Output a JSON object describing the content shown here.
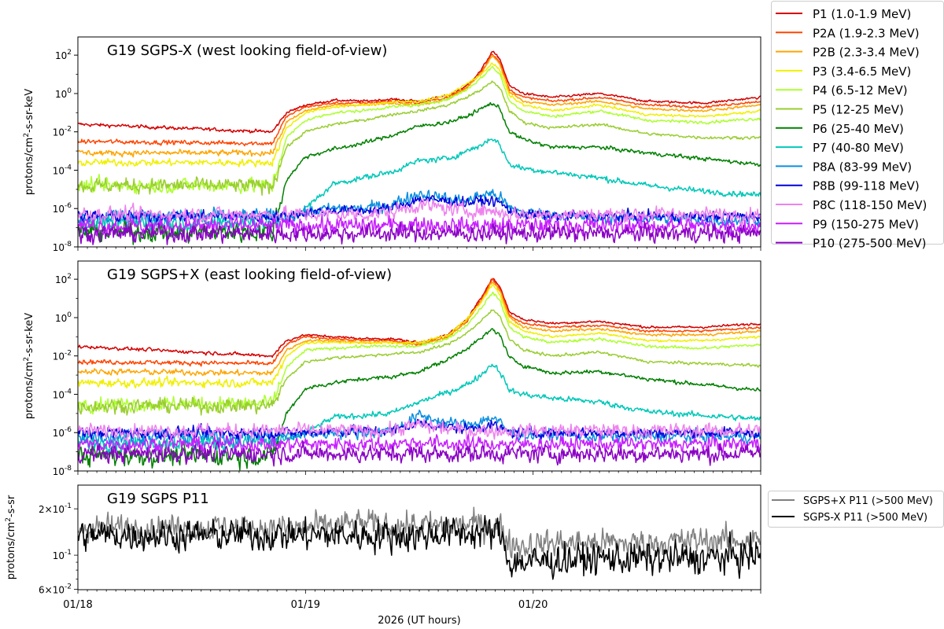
{
  "chart_data": {
    "type": "line",
    "xlabel": "2026 (UT hours)",
    "x_units": "hours since 01/18 00:00 UT",
    "xlim": [
      0,
      72
    ],
    "x_ticks": [
      {
        "h": 0,
        "label": "01/18"
      },
      {
        "h": 24,
        "label": "01/19"
      },
      {
        "h": 48,
        "label": "01/20"
      }
    ],
    "keypoint_hours": [
      0,
      20.5,
      22,
      24,
      27,
      30,
      33,
      36,
      39,
      41,
      42.5,
      43.7,
      44.5,
      45.5,
      47,
      50,
      55,
      60,
      66,
      72
    ],
    "panels": [
      {
        "title": "G19 SGPS-X (west looking field-of-view)",
        "ylabel": "protons/cm2-s-sr-keV",
        "yscale": "log",
        "ylim_log10": [
          -8,
          2.95
        ],
        "y_ticks": [
          {
            "exp": 2,
            "label": "10^2"
          },
          {
            "exp": 0,
            "label": "10^0"
          },
          {
            "exp": -2,
            "label": "10^-2"
          },
          {
            "exp": -4,
            "label": "10^-4"
          },
          {
            "exp": -6,
            "label": "10^-6"
          },
          {
            "exp": -8,
            "label": "10^-8"
          }
        ],
        "series": [
          {
            "name": "P1 (1.0-1.9 MeV)",
            "color": "#d40000",
            "noise_pre": 0.06,
            "noise_post": 0.04,
            "log10_values": [
              -1.6,
              -2.0,
              -1.0,
              -0.6,
              -0.35,
              -0.4,
              -0.3,
              -0.4,
              -0.1,
              0.4,
              1.2,
              2.2,
              1.8,
              0.4,
              0.0,
              -0.2,
              0.0,
              -0.4,
              -0.5,
              -0.2
            ]
          },
          {
            "name": "P2A (1.9-2.3 MeV)",
            "color": "#ff4500",
            "noise_pre": 0.08,
            "noise_post": 0.04,
            "log10_values": [
              -2.5,
              -2.6,
              -1.2,
              -0.7,
              -0.5,
              -0.5,
              -0.4,
              -0.5,
              -0.2,
              0.3,
              1.1,
              2.1,
              1.6,
              0.2,
              -0.2,
              -0.4,
              -0.2,
              -0.6,
              -0.7,
              -0.4
            ]
          },
          {
            "name": "P2B (2.3-3.4 MeV)",
            "color": "#ffa500",
            "noise_pre": 0.1,
            "noise_post": 0.04,
            "log10_values": [
              -3.1,
              -3.1,
              -1.5,
              -0.9,
              -0.6,
              -0.6,
              -0.5,
              -0.6,
              -0.3,
              0.3,
              1.0,
              2.0,
              1.5,
              0.1,
              -0.4,
              -0.6,
              -0.4,
              -0.8,
              -0.9,
              -0.6
            ]
          },
          {
            "name": "P3 (3.4-6.5 MeV)",
            "color": "#f0f000",
            "noise_pre": 0.12,
            "noise_post": 0.04,
            "log10_values": [
              -3.6,
              -3.6,
              -1.8,
              -1.0,
              -0.7,
              -0.6,
              -0.45,
              -0.4,
              -0.1,
              0.5,
              1.0,
              1.6,
              1.2,
              -0.1,
              -0.6,
              -0.9,
              -0.6,
              -1.1,
              -1.2,
              -0.9
            ]
          },
          {
            "name": "P4 (6.5-12 MeV)",
            "color": "#adff2f",
            "noise_pre": 0.25,
            "noise_post": 0.05,
            "log10_values": [
              -4.8,
              -4.8,
              -2.3,
              -1.4,
              -1.0,
              -0.9,
              -0.7,
              -0.6,
              -0.3,
              0.2,
              0.8,
              1.4,
              1.0,
              -0.4,
              -0.9,
              -1.2,
              -0.9,
              -1.4,
              -1.5,
              -1.3
            ]
          },
          {
            "name": "P5 (12-25 MeV)",
            "color": "#9acd32",
            "noise_pre": 0.25,
            "noise_post": 0.05,
            "log10_values": [
              -4.8,
              -4.8,
              -2.8,
              -2.0,
              -1.6,
              -1.4,
              -1.1,
              -0.9,
              -0.6,
              -0.2,
              0.2,
              0.6,
              0.3,
              -0.9,
              -1.5,
              -1.8,
              -1.6,
              -2.1,
              -2.3,
              -2.3
            ]
          },
          {
            "name": "P6 (25-40 MeV)",
            "color": "#008000",
            "noise_pre": 0.35,
            "noise_post": 0.07,
            "log10_values": [
              -7.2,
              -7.2,
              -4.5,
              -3.3,
              -2.9,
              -2.6,
              -2.2,
              -1.7,
              -1.5,
              -1.2,
              -0.8,
              -0.5,
              -0.8,
              -2.0,
              -2.4,
              -2.8,
              -2.8,
              -3.1,
              -3.4,
              -3.7
            ]
          },
          {
            "name": "P7 (40-80 MeV)",
            "color": "#00c8b8",
            "noise_pre": 0.3,
            "noise_post": 0.1,
            "log10_values": [
              -6.7,
              -6.7,
              -6.6,
              -6.0,
              -4.7,
              -4.4,
              -4.1,
              -3.5,
              -3.4,
              -3.0,
              -2.7,
              -2.3,
              -2.7,
              -3.7,
              -3.9,
              -4.1,
              -4.4,
              -4.8,
              -5.1,
              -5.3
            ]
          },
          {
            "name": "P8A (83-99 MeV)",
            "color": "#0a8fe0",
            "noise_pre": 0.25,
            "noise_post": 0.2,
            "log10_values": [
              -6.4,
              -6.4,
              -6.4,
              -6.2,
              -6.0,
              -6.0,
              -5.8,
              -5.2,
              -5.5,
              -5.6,
              -5.3,
              -5.2,
              -5.4,
              -6.0,
              -6.2,
              -6.3,
              -6.5,
              -6.5,
              -6.6,
              -6.6
            ]
          },
          {
            "name": "P8B (99-118 MeV)",
            "color": "#0000dd",
            "noise_pre": 0.2,
            "noise_post": 0.18,
            "log10_values": [
              -6.4,
              -6.4,
              -6.4,
              -6.2,
              -6.1,
              -6.1,
              -6.0,
              -5.5,
              -5.6,
              -5.7,
              -5.6,
              -5.6,
              -5.7,
              -6.1,
              -6.3,
              -6.4,
              -6.4,
              -6.4,
              -6.4,
              -6.4
            ]
          },
          {
            "name": "P8C (118-150 MeV)",
            "color": "#ee82ee",
            "noise_pre": 0.25,
            "noise_post": 0.25,
            "log10_values": [
              -6.3,
              -6.3,
              -6.3,
              -6.3,
              -6.3,
              -6.3,
              -6.2,
              -5.8,
              -6.0,
              -6.1,
              -6.1,
              -6.1,
              -6.2,
              -6.3,
              -6.3,
              -6.3,
              -6.3,
              -6.3,
              -6.3,
              -6.3
            ]
          },
          {
            "name": "P9 (150-275 MeV)",
            "color": "#c71fff",
            "noise_pre": 0.3,
            "noise_post": 0.3,
            "log10_values": [
              -6.9,
              -6.9,
              -6.9,
              -6.9,
              -6.9,
              -6.9,
              -6.9,
              -6.8,
              -6.9,
              -6.9,
              -6.9,
              -6.9,
              -6.9,
              -6.9,
              -6.9,
              -6.9,
              -6.9,
              -6.9,
              -6.9,
              -6.9
            ]
          },
          {
            "name": "P10 (275-500 MeV)",
            "color": "#8a00c4",
            "noise_pre": 0.3,
            "noise_post": 0.3,
            "log10_values": [
              -7.3,
              -7.3,
              -7.3,
              -7.3,
              -7.3,
              -7.3,
              -7.3,
              -7.3,
              -7.3,
              -7.3,
              -7.3,
              -7.3,
              -7.3,
              -7.3,
              -7.3,
              -7.3,
              -7.3,
              -7.3,
              -7.3,
              -7.3
            ]
          }
        ]
      },
      {
        "title": "G19 SGPS+X (east looking field-of-view)",
        "ylabel": "protons/cm2-s-sr-keV",
        "yscale": "log",
        "ylim_log10": [
          -8,
          2.95
        ],
        "y_ticks": [
          {
            "exp": 2,
            "label": "10^2"
          },
          {
            "exp": 0,
            "label": "10^0"
          },
          {
            "exp": -2,
            "label": "10^-2"
          },
          {
            "exp": -4,
            "label": "10^-4"
          },
          {
            "exp": -6,
            "label": "10^-6"
          },
          {
            "exp": -8,
            "label": "10^-8"
          }
        ],
        "series": [
          {
            "name": "P1 (1.0-1.9 MeV)",
            "color": "#d40000",
            "noise_pre": 0.06,
            "noise_post": 0.04,
            "log10_values": [
              -1.5,
              -2.0,
              -1.2,
              -0.9,
              -1.0,
              -1.1,
              -1.1,
              -1.3,
              -0.9,
              -0.1,
              1.0,
              2.1,
              1.6,
              0.3,
              -0.1,
              -0.3,
              -0.2,
              -0.5,
              -0.5,
              -0.3
            ]
          },
          {
            "name": "P2A (1.9-2.3 MeV)",
            "color": "#ff4500",
            "noise_pre": 0.08,
            "noise_post": 0.04,
            "log10_values": [
              -2.3,
              -2.4,
              -1.4,
              -1.0,
              -1.1,
              -1.2,
              -1.2,
              -1.4,
              -1.0,
              -0.2,
              0.9,
              2.0,
              1.5,
              0.1,
              -0.3,
              -0.5,
              -0.4,
              -0.7,
              -0.7,
              -0.5
            ]
          },
          {
            "name": "P2B (2.3-3.4 MeV)",
            "color": "#ffa500",
            "noise_pre": 0.1,
            "noise_post": 0.04,
            "log10_values": [
              -2.8,
              -2.9,
              -1.7,
              -1.2,
              -1.2,
              -1.3,
              -1.3,
              -1.4,
              -1.0,
              -0.2,
              0.8,
              1.9,
              1.4,
              0.0,
              -0.5,
              -0.7,
              -0.6,
              -0.9,
              -0.9,
              -0.7
            ]
          },
          {
            "name": "P3 (3.4-6.5 MeV)",
            "color": "#f0f000",
            "noise_pre": 0.15,
            "noise_post": 0.04,
            "log10_values": [
              -3.4,
              -3.4,
              -2.0,
              -1.3,
              -1.3,
              -1.3,
              -1.3,
              -1.3,
              -0.9,
              -0.1,
              0.8,
              1.7,
              1.2,
              -0.2,
              -0.7,
              -1.0,
              -0.8,
              -1.2,
              -1.2,
              -1.0
            ]
          },
          {
            "name": "P4 (6.5-12 MeV)",
            "color": "#adff2f",
            "noise_pre": 0.25,
            "noise_post": 0.05,
            "log10_values": [
              -4.5,
              -4.5,
              -2.6,
              -1.7,
              -1.6,
              -1.5,
              -1.5,
              -1.5,
              -1.1,
              -0.4,
              0.5,
              1.3,
              0.9,
              -0.5,
              -1.0,
              -1.3,
              -1.1,
              -1.5,
              -1.6,
              -1.4
            ]
          },
          {
            "name": "P5 (12-25 MeV)",
            "color": "#9acd32",
            "noise_pre": 0.25,
            "noise_post": 0.05,
            "log10_values": [
              -4.6,
              -4.6,
              -3.2,
              -2.3,
              -2.1,
              -2.0,
              -1.9,
              -1.8,
              -1.4,
              -0.8,
              -0.2,
              0.4,
              0.1,
              -1.1,
              -1.7,
              -2.0,
              -1.8,
              -2.3,
              -2.4,
              -2.5
            ]
          },
          {
            "name": "P6 (25-40 MeV)",
            "color": "#008000",
            "noise_pre": 0.35,
            "noise_post": 0.07,
            "log10_values": [
              -7.2,
              -7.2,
              -5.0,
              -3.7,
              -3.4,
              -3.2,
              -3.1,
              -2.8,
              -2.2,
              -1.6,
              -1.1,
              -0.6,
              -0.9,
              -2.1,
              -2.5,
              -2.9,
              -2.8,
              -3.2,
              -3.5,
              -3.8
            ]
          },
          {
            "name": "P7 (40-80 MeV)",
            "color": "#00c8b8",
            "noise_pre": 0.3,
            "noise_post": 0.1,
            "log10_values": [
              -6.5,
              -6.5,
              -6.4,
              -6.0,
              -5.2,
              -5.1,
              -5.0,
              -4.4,
              -3.9,
              -3.5,
              -3.0,
              -2.4,
              -2.8,
              -3.8,
              -4.0,
              -4.2,
              -4.4,
              -4.9,
              -5.1,
              -5.3
            ]
          },
          {
            "name": "P8A (83-99 MeV)",
            "color": "#0a8fe0",
            "noise_pre": 0.25,
            "noise_post": 0.2,
            "log10_values": [
              -6.2,
              -6.2,
              -6.2,
              -6.1,
              -6.0,
              -6.0,
              -5.9,
              -5.1,
              -5.5,
              -5.6,
              -5.4,
              -5.2,
              -5.5,
              -6.0,
              -6.1,
              -6.1,
              -6.2,
              -6.2,
              -6.2,
              -6.2
            ]
          },
          {
            "name": "P8B (99-118 MeV)",
            "color": "#0000dd",
            "noise_pre": 0.2,
            "noise_post": 0.18,
            "log10_values": [
              -6.0,
              -6.0,
              -6.0,
              -6.0,
              -5.9,
              -5.9,
              -5.9,
              -5.5,
              -5.7,
              -5.8,
              -5.7,
              -5.6,
              -5.8,
              -6.0,
              -6.0,
              -6.0,
              -6.0,
              -6.0,
              -6.0,
              -6.0
            ]
          },
          {
            "name": "P8C (118-150 MeV)",
            "color": "#ee82ee",
            "noise_pre": 0.25,
            "noise_post": 0.25,
            "log10_values": [
              -5.9,
              -5.9,
              -5.9,
              -5.9,
              -5.9,
              -5.9,
              -5.9,
              -5.6,
              -5.8,
              -5.9,
              -5.9,
              -5.9,
              -5.9,
              -5.9,
              -5.9,
              -5.9,
              -5.9,
              -5.9,
              -5.9,
              -5.9
            ]
          },
          {
            "name": "P9 (150-275 MeV)",
            "color": "#c71fff",
            "noise_pre": 0.25,
            "noise_post": 0.25,
            "log10_values": [
              -6.6,
              -6.6,
              -6.6,
              -6.6,
              -6.6,
              -6.6,
              -6.6,
              -6.5,
              -6.6,
              -6.6,
              -6.6,
              -6.6,
              -6.6,
              -6.6,
              -6.6,
              -6.6,
              -6.6,
              -6.6,
              -6.6,
              -6.6
            ]
          },
          {
            "name": "P10 (275-500 MeV)",
            "color": "#8a00c4",
            "noise_pre": 0.3,
            "noise_post": 0.3,
            "log10_values": [
              -7.1,
              -7.1,
              -7.1,
              -7.1,
              -7.1,
              -7.1,
              -7.1,
              -7.1,
              -7.1,
              -7.1,
              -7.1,
              -7.1,
              -7.1,
              -7.1,
              -7.1,
              -7.1,
              -7.1,
              -7.1,
              -7.1,
              -7.1
            ]
          }
        ]
      },
      {
        "title": "G19 SGPS P11",
        "ylabel": "protons/cm2-s-sr",
        "yscale": "log",
        "ylim": [
          0.0597,
          0.285
        ],
        "y_ticks": [
          {
            "value": 0.2,
            "label": "2×10^-1"
          },
          {
            "value": 0.1,
            "label": "10^-1"
          },
          {
            "value": 0.06,
            "label": "6×10^-2"
          }
        ],
        "series": [
          {
            "name": "SGPS+X P11 (>500 MeV)",
            "color": "#808080",
            "noise_pre": 0.06,
            "noise_post": 0.06,
            "values": [
              0.15,
              0.15,
              0.15,
              0.15,
              0.155,
              0.16,
              0.155,
              0.155,
              0.155,
              0.16,
              0.155,
              0.155,
              0.155,
              0.12,
              0.115,
              0.12,
              0.12,
              0.12,
              0.125,
              0.125
            ]
          },
          {
            "name": "SGPS-X P11 (>500 MeV)",
            "color": "#000000",
            "noise_pre": 0.065,
            "noise_post": 0.07,
            "values": [
              0.135,
              0.135,
              0.135,
              0.135,
              0.135,
              0.135,
              0.135,
              0.135,
              0.14,
              0.14,
              0.14,
              0.14,
              0.14,
              0.09,
              0.09,
              0.092,
              0.095,
              0.095,
              0.095,
              0.1
            ]
          }
        ]
      }
    ]
  }
}
